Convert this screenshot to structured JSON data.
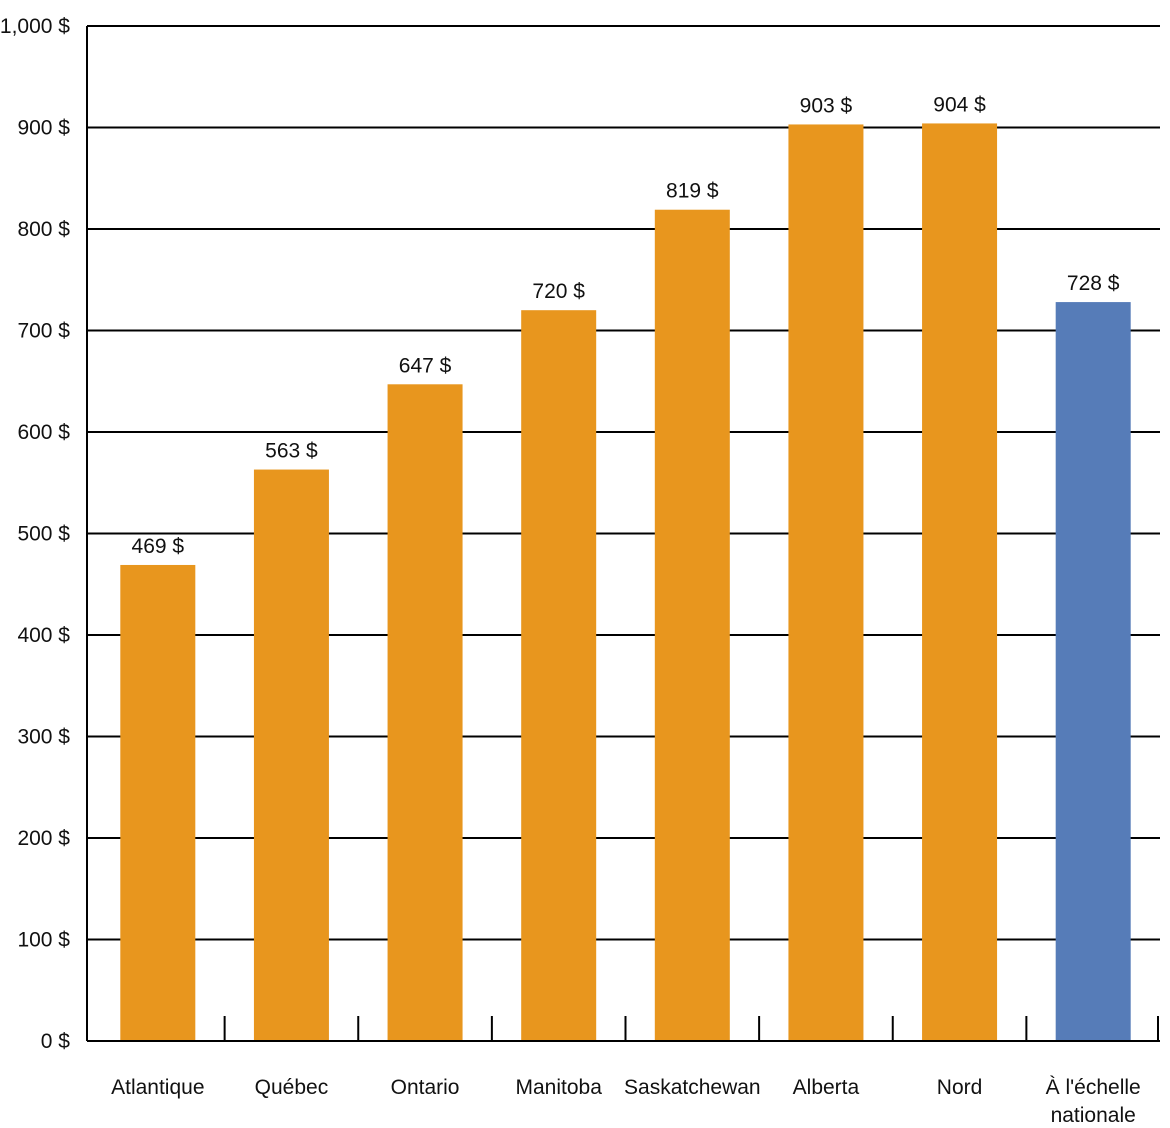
{
  "chart_data": {
    "type": "bar",
    "title": "",
    "xlabel": "",
    "ylabel": "",
    "ylim": [
      0,
      1000
    ],
    "yticks": [
      0,
      100,
      200,
      300,
      400,
      500,
      600,
      700,
      800,
      900,
      1000
    ],
    "ytick_labels": [
      "0 $",
      "100 $",
      "200 $",
      "300 $",
      "400 $",
      "500 $",
      "600 $",
      "700 $",
      "800 $",
      "900 $",
      "1,000 $"
    ],
    "grid": true,
    "legend": "none",
    "categories": [
      [
        "Atlantique"
      ],
      [
        "Québec"
      ],
      [
        "Ontario"
      ],
      [
        "Manitoba"
      ],
      [
        "Saskatchewan"
      ],
      [
        "Alberta"
      ],
      [
        "Nord"
      ],
      [
        "À l'échelle",
        "nationale"
      ]
    ],
    "values": [
      469,
      563,
      647,
      720,
      819,
      903,
      904,
      728
    ],
    "value_labels": [
      "469 $",
      "563 $",
      "647 $",
      "720 $",
      "819 $",
      "903 $",
      "904 $",
      "728 $"
    ],
    "colors": [
      "#e8961e",
      "#e8961e",
      "#e8961e",
      "#e8961e",
      "#e8961e",
      "#e8961e",
      "#e8961e",
      "#567cb8"
    ]
  }
}
